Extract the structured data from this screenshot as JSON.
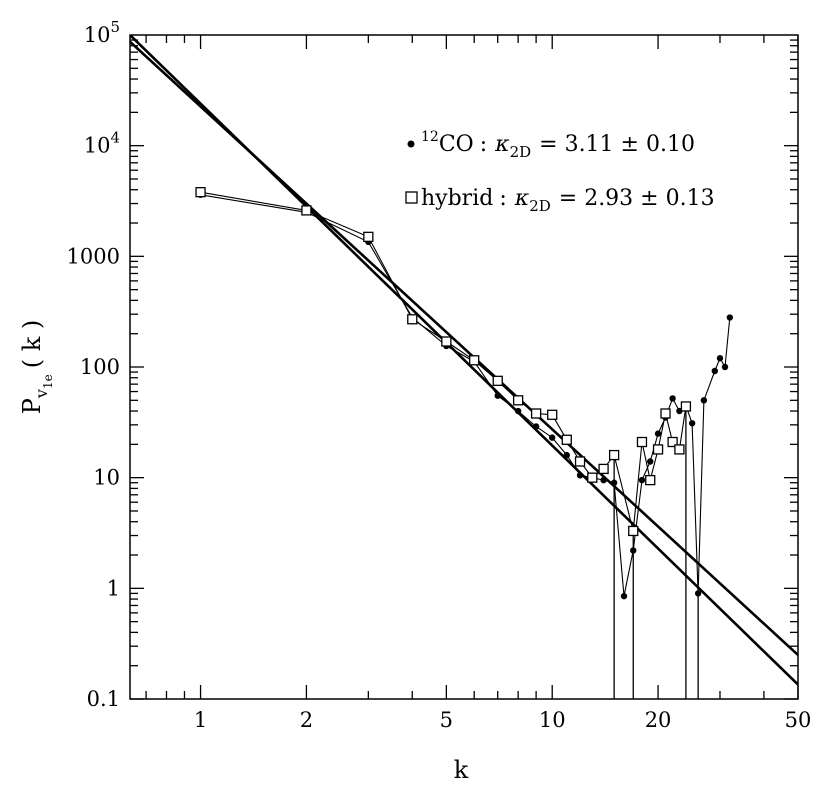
{
  "chart_data": {
    "type": "scatter",
    "xscale": "log",
    "yscale": "log",
    "xlim": [
      0.63,
      50
    ],
    "ylim": [
      0.1,
      100000
    ],
    "grid": false,
    "xlabel": "k",
    "ylabel": {
      "main": "P",
      "sub1": "v",
      "sub2": "1e",
      "rest": "( k )"
    },
    "xticks": [
      {
        "value": 1,
        "label": "1"
      },
      {
        "value": 2,
        "label": "2"
      },
      {
        "value": 5,
        "label": "5"
      },
      {
        "value": 10,
        "label": "10"
      },
      {
        "value": 20,
        "label": "20"
      },
      {
        "value": 50,
        "label": "50"
      }
    ],
    "yticks": [
      {
        "value": 0.1,
        "label": "0.1"
      },
      {
        "value": 1,
        "label": "1"
      },
      {
        "value": 10,
        "label": "10"
      },
      {
        "value": 100,
        "label": "100"
      },
      {
        "value": 1000,
        "label": "1000"
      },
      {
        "value": 10000,
        "base": "10",
        "exp": "4"
      },
      {
        "value": 100000,
        "base": "10",
        "exp": "5"
      }
    ],
    "legend": {
      "placement": "top-right",
      "entries": [
        {
          "marker": "filled-dot",
          "iso": "12",
          "label": "CO",
          "sep": ":",
          "kappa": "κ",
          "sub": "2D",
          "eq": "= 3.11 ± 0.10"
        },
        {
          "marker": "open-square",
          "iso": "",
          "label": "hybrid",
          "sep": ":",
          "kappa": "κ",
          "sub": "2D",
          "eq": "= 2.93 ± 0.13"
        }
      ]
    },
    "series": [
      {
        "name": "12CO",
        "marker": "dot",
        "points": [
          [
            1,
            3600
          ],
          [
            2,
            2500
          ],
          [
            3,
            1350
          ],
          [
            4,
            280
          ],
          [
            5,
            155
          ],
          [
            6,
            112
          ],
          [
            7,
            55
          ],
          [
            8,
            40
          ],
          [
            9,
            29
          ],
          [
            10,
            23
          ],
          [
            11,
            16
          ],
          [
            12,
            10.5
          ],
          [
            13,
            10
          ],
          [
            14,
            9.5
          ],
          [
            15,
            9
          ],
          [
            16,
            0.85
          ],
          [
            17,
            2.2
          ],
          [
            18,
            9.5
          ],
          [
            19,
            14
          ],
          [
            20,
            25
          ],
          [
            21,
            35
          ],
          [
            22,
            52
          ],
          [
            23,
            40
          ],
          [
            24,
            45
          ],
          [
            25,
            31
          ],
          [
            26,
            0.9
          ],
          [
            27,
            50
          ],
          [
            29,
            92
          ],
          [
            30,
            120
          ],
          [
            31,
            100
          ],
          [
            32,
            280
          ]
        ],
        "drops": [
          26
        ]
      },
      {
        "name": "hybrid",
        "marker": "square",
        "points": [
          [
            1,
            3800
          ],
          [
            2,
            2600
          ],
          [
            3,
            1500
          ],
          [
            4,
            270
          ],
          [
            5,
            170
          ],
          [
            6,
            115
          ],
          [
            7,
            75
          ],
          [
            8,
            50
          ],
          [
            9,
            38
          ],
          [
            10,
            37
          ],
          [
            11,
            22
          ],
          [
            12,
            14
          ],
          [
            13,
            10
          ],
          [
            14,
            12
          ],
          [
            15,
            16
          ],
          [
            17,
            3.3
          ],
          [
            18,
            21
          ],
          [
            19,
            9.5
          ],
          [
            20,
            18
          ],
          [
            21,
            38
          ],
          [
            22,
            21
          ],
          [
            23,
            18
          ],
          [
            24,
            44
          ]
        ],
        "drops": [
          15,
          17,
          24
        ]
      }
    ],
    "fits": [
      {
        "name": "12CO fit",
        "slope": -3.11,
        "points": [
          [
            0.63,
            100000
          ],
          [
            50,
            0.135
          ]
        ]
      },
      {
        "name": "hybrid fit",
        "slope": -2.93,
        "points": [
          [
            0.63,
            87000
          ],
          [
            50,
            0.25
          ]
        ]
      }
    ]
  }
}
